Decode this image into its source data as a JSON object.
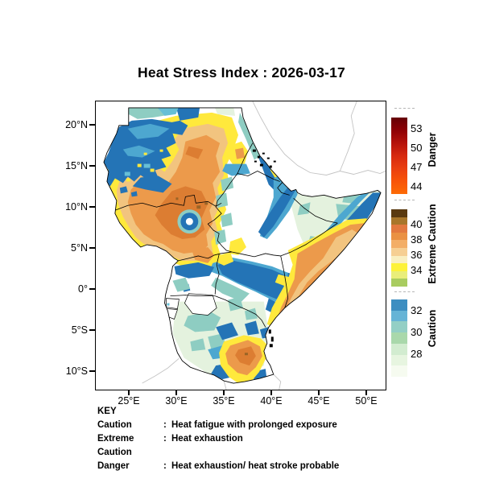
{
  "title": "Heat Stress Index : 2026-03-17",
  "axes": {
    "lat": [
      "20°N",
      "15°N",
      "10°N",
      "5°N",
      "0°",
      "5°S",
      "10°S"
    ],
    "lon": [
      "25°E",
      "30°E",
      "35°E",
      "40°E",
      "45°E",
      "50°E"
    ]
  },
  "colorbars": [
    {
      "title": "Danger",
      "tick_labels": [
        "53",
        "50",
        "47",
        "44"
      ],
      "gradient": [
        "#650005",
        "#8e0005",
        "#b5120b",
        "#d7290f",
        "#ea3f10",
        "#f85408",
        "#fd6b05"
      ]
    },
    {
      "title": "Extreme Caution",
      "tick_labels": [
        "40",
        "38",
        "36",
        "34"
      ],
      "steps": [
        "#5a3a10",
        "#a8762a",
        "#e2793f",
        "#ea9143",
        "#f3ae67",
        "#f6cf93",
        "#f9efc1",
        "#fdf23a",
        "#e9ee7a",
        "#a9cc60"
      ]
    },
    {
      "title": "Caution",
      "tick_labels": [
        "32",
        "30",
        "28"
      ],
      "steps": [
        "#3d8ec1",
        "#66b4d6",
        "#93cfc5",
        "#a9d8ab",
        "#d2ecd0",
        "#e7f5e0",
        "#f6fbf0"
      ]
    }
  ],
  "key": {
    "heading": "KEY",
    "entries": [
      {
        "label": "Caution",
        "separator": ":",
        "description": "Heat fatigue with prolonged exposure"
      },
      {
        "label": "Extreme Caution",
        "separator": ":",
        "description": "Heat exhaustion"
      },
      {
        "label": "Danger",
        "separator": ":",
        "description": "Heat exhaustion/ heat stroke probable"
      }
    ]
  },
  "map": {
    "palette": {
      "deep_blue": "#2474b6",
      "mid_blue": "#4da7d0",
      "aqua": "#66bfd6",
      "teal": "#8ecdc2",
      "light_green": "#b5dfb6",
      "pale_green": "#e4f2de",
      "yellow": "#ffe93c",
      "cream": "#f8eec3",
      "tan": "#f2c47f",
      "orange": "#ec9a4b",
      "dark_orange": "#dc7d32",
      "brown": "#9a6426",
      "border_black": "#000000",
      "neighbor_gray": "#c3c3c3",
      "sea_white": "#ffffff"
    }
  }
}
